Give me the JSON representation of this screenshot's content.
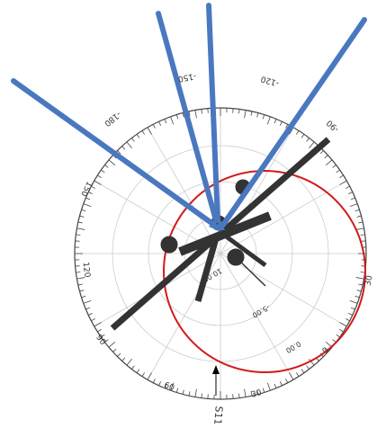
{
  "angle_labels": [
    "-150",
    "-120",
    "-90",
    "-180",
    "150",
    "120",
    "90",
    "60",
    "30",
    "0",
    "30"
  ],
  "radial_labels": [
    "10.00",
    "-5.00",
    "0.00"
  ],
  "port_label": "S11"
}
